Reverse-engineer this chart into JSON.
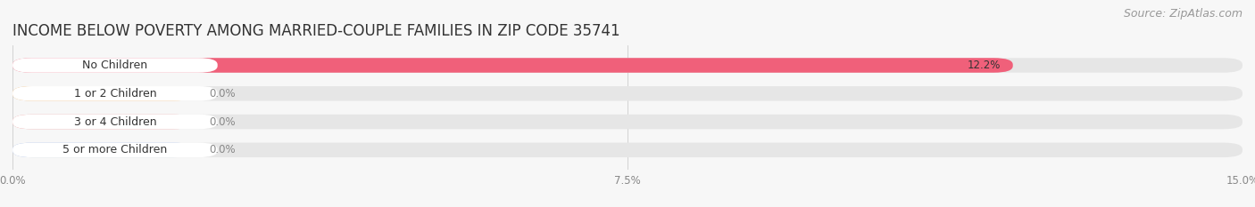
{
  "title": "INCOME BELOW POVERTY AMONG MARRIED-COUPLE FAMILIES IN ZIP CODE 35741",
  "source": "Source: ZipAtlas.com",
  "categories": [
    "No Children",
    "1 or 2 Children",
    "3 or 4 Children",
    "5 or more Children"
  ],
  "values": [
    12.2,
    0.0,
    0.0,
    0.0
  ],
  "bar_colors": [
    "#f0607a",
    "#f0b870",
    "#f09090",
    "#a0b8e8"
  ],
  "value_labels": [
    "12.2%",
    "0.0%",
    "0.0%",
    "0.0%"
  ],
  "xlim_max": 15.0,
  "xticks": [
    0.0,
    7.5,
    15.0
  ],
  "xtick_labels": [
    "0.0%",
    "7.5%",
    "15.0%"
  ],
  "background_color": "#f7f7f7",
  "bar_bg_color": "#e6e6e6",
  "label_bg_color": "#ffffff",
  "title_fontsize": 12,
  "source_fontsize": 9,
  "label_fontsize": 9,
  "value_fontsize": 8.5,
  "bar_height": 0.52,
  "colored_segment_for_zero": 2.2
}
